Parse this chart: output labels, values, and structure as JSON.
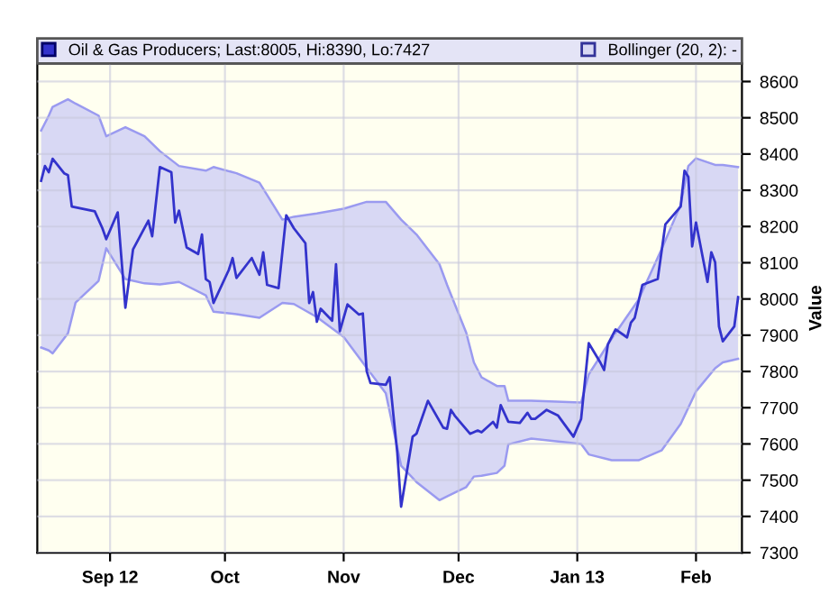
{
  "chart_data": {
    "type": "line",
    "ylabel": "Value",
    "xlim": [
      "2012-08-13",
      "2013-02-13"
    ],
    "xticks": [
      {
        "value": "2012-09-01",
        "label": "Sep 12"
      },
      {
        "value": "2012-10-01",
        "label": "Oct"
      },
      {
        "value": "2012-11-01",
        "label": "Nov"
      },
      {
        "value": "2012-12-01",
        "label": "Dec"
      },
      {
        "value": "2013-01-01",
        "label": "Jan 13"
      },
      {
        "value": "2013-02-01",
        "label": "Feb"
      }
    ],
    "ylim": [
      7300,
      8650
    ],
    "yticks": [
      7300,
      7400,
      7500,
      7600,
      7700,
      7800,
      7900,
      8000,
      8100,
      8200,
      8300,
      8400,
      8500,
      8600
    ],
    "grid": true,
    "legend": "top",
    "series": [
      {
        "name": "Oil & Gas Producers; Last:8005, Hi:8390, Lo:7427",
        "color": "#3333cc",
        "x": [
          "2012-08-14",
          "2012-08-15",
          "2012-08-16",
          "2012-08-17",
          "2012-08-20",
          "2012-08-21",
          "2012-08-22",
          "2012-08-28",
          "2012-08-30",
          "2012-08-31",
          "2012-09-03",
          "2012-09-05",
          "2012-09-07",
          "2012-09-11",
          "2012-09-12",
          "2012-09-14",
          "2012-09-17",
          "2012-09-18",
          "2012-09-19",
          "2012-09-21",
          "2012-09-24",
          "2012-09-25",
          "2012-09-26",
          "2012-09-27",
          "2012-09-28",
          "2012-10-02",
          "2012-10-03",
          "2012-10-04",
          "2012-10-08",
          "2012-10-10",
          "2012-10-11",
          "2012-10-12",
          "2012-10-15",
          "2012-10-17",
          "2012-10-19",
          "2012-10-22",
          "2012-10-23",
          "2012-10-24",
          "2012-10-25",
          "2012-10-26",
          "2012-10-29",
          "2012-10-30",
          "2012-10-31",
          "2012-11-02",
          "2012-11-05",
          "2012-11-06",
          "2012-11-07",
          "2012-11-08",
          "2012-11-12",
          "2012-11-13",
          "2012-11-14",
          "2012-11-15",
          "2012-11-16",
          "2012-11-19",
          "2012-11-20",
          "2012-11-23",
          "2012-11-27",
          "2012-11-28",
          "2012-11-29",
          "2012-11-30",
          "2012-12-04",
          "2012-12-06",
          "2012-12-07",
          "2012-12-10",
          "2012-12-11",
          "2012-12-12",
          "2012-12-14",
          "2012-12-17",
          "2012-12-19",
          "2012-12-20",
          "2012-12-21",
          "2012-12-24",
          "2012-12-27",
          "2012-12-31",
          "2013-01-02",
          "2013-01-04",
          "2013-01-07",
          "2013-01-08",
          "2013-01-09",
          "2013-01-11",
          "2013-01-14",
          "2013-01-15",
          "2013-01-16",
          "2013-01-18",
          "2013-01-22",
          "2013-01-24",
          "2013-01-28",
          "2013-01-29",
          "2013-01-30",
          "2013-01-31",
          "2013-02-01",
          "2013-02-04",
          "2013-02-05",
          "2013-02-06",
          "2013-02-07",
          "2013-02-08",
          "2013-02-11",
          "2013-02-12"
        ],
        "values": [
          8326,
          8367,
          8350,
          8387,
          8347,
          8342,
          8255,
          8242,
          8195,
          8165,
          8239,
          7976,
          8137,
          8216,
          8173,
          8364,
          8350,
          8211,
          8244,
          8142,
          8124,
          8178,
          8055,
          8047,
          7989,
          8080,
          8113,
          8058,
          8113,
          8067,
          8129,
          8039,
          8030,
          8231,
          8195,
          8154,
          7989,
          8019,
          7937,
          7973,
          7940,
          8096,
          7911,
          7985,
          7957,
          7960,
          7801,
          7768,
          7763,
          7784,
          7678,
          7576,
          7427,
          7620,
          7628,
          7719,
          7645,
          7642,
          7694,
          7678,
          7628,
          7637,
          7632,
          7661,
          7645,
          7707,
          7661,
          7658,
          7686,
          7669,
          7669,
          7694,
          7678,
          7620,
          7669,
          7878,
          7825,
          7804,
          7875,
          7916,
          7894,
          7935,
          7948,
          8039,
          8055,
          8206,
          8255,
          8354,
          8337,
          8145,
          8211,
          8047,
          8129,
          8101,
          7924,
          7883,
          7924,
          8005
        ]
      },
      {
        "name": "Bollinger (20, 2): -",
        "type": "area",
        "color": "#d8d8f4",
        "x": [
          "2012-08-14",
          "2012-08-16",
          "2012-08-17",
          "2012-08-21",
          "2012-08-23",
          "2012-08-29",
          "2012-08-31",
          "2012-09-05",
          "2012-09-10",
          "2012-09-14",
          "2012-09-19",
          "2012-09-26",
          "2012-09-28",
          "2012-10-04",
          "2012-10-10",
          "2012-10-16",
          "2012-10-19",
          "2012-10-25",
          "2012-11-01",
          "2012-11-07",
          "2012-11-12",
          "2012-11-16",
          "2012-11-20",
          "2012-11-26",
          "2012-11-28",
          "2012-12-03",
          "2012-12-05",
          "2012-12-07",
          "2012-12-11",
          "2012-12-13",
          "2012-12-14",
          "2012-12-20",
          "2013-01-02",
          "2013-01-04",
          "2013-01-10",
          "2013-01-17",
          "2013-01-23",
          "2013-01-28",
          "2013-01-30",
          "2013-02-01",
          "2013-02-06",
          "2013-02-08",
          "2013-02-12"
        ],
        "values": [
          8465,
          8506,
          8530,
          8551,
          8539,
          8506,
          8449,
          8474,
          8449,
          8408,
          8367,
          8354,
          8364,
          8347,
          8321,
          8219,
          8227,
          8236,
          8249,
          8268,
          8268,
          8219,
          8178,
          8096,
          8039,
          7907,
          7825,
          7784,
          7760,
          7760,
          7719,
          7719,
          7714,
          7792,
          7891,
          7998,
          8137,
          8260,
          8367,
          8388,
          8370,
          8370,
          8364
        ]
      },
      {
        "color": "#fffff0",
        "type": "area",
        "x": [
          "2012-08-14",
          "2012-08-16",
          "2012-08-17",
          "2012-08-21",
          "2012-08-23",
          "2012-08-29",
          "2012-08-31",
          "2012-09-05",
          "2012-09-10",
          "2012-09-14",
          "2012-09-19",
          "2012-09-26",
          "2012-09-28",
          "2012-10-04",
          "2012-10-10",
          "2012-10-16",
          "2012-10-19",
          "2012-10-25",
          "2012-11-01",
          "2012-11-07",
          "2012-11-12",
          "2012-11-16",
          "2012-11-20",
          "2012-11-26",
          "2012-11-28",
          "2012-12-03",
          "2012-12-05",
          "2012-12-07",
          "2012-12-11",
          "2012-12-13",
          "2012-12-14",
          "2012-12-20",
          "2013-01-02",
          "2013-01-04",
          "2013-01-10",
          "2013-01-17",
          "2013-01-23",
          "2013-01-28",
          "2013-01-30",
          "2013-02-01",
          "2013-02-06",
          "2013-02-08",
          "2013-02-12"
        ],
        "values": [
          7866,
          7858,
          7850,
          7905,
          7990,
          8050,
          8140,
          8055,
          8043,
          8040,
          8047,
          8010,
          7965,
          7958,
          7948,
          7989,
          7986,
          7950,
          7895,
          7810,
          7740,
          7540,
          7495,
          7445,
          7455,
          7481,
          7510,
          7512,
          7520,
          7540,
          7599,
          7615,
          7600,
          7571,
          7555,
          7555,
          7582,
          7655,
          7700,
          7745,
          7809,
          7825,
          7835
        ]
      }
    ]
  }
}
